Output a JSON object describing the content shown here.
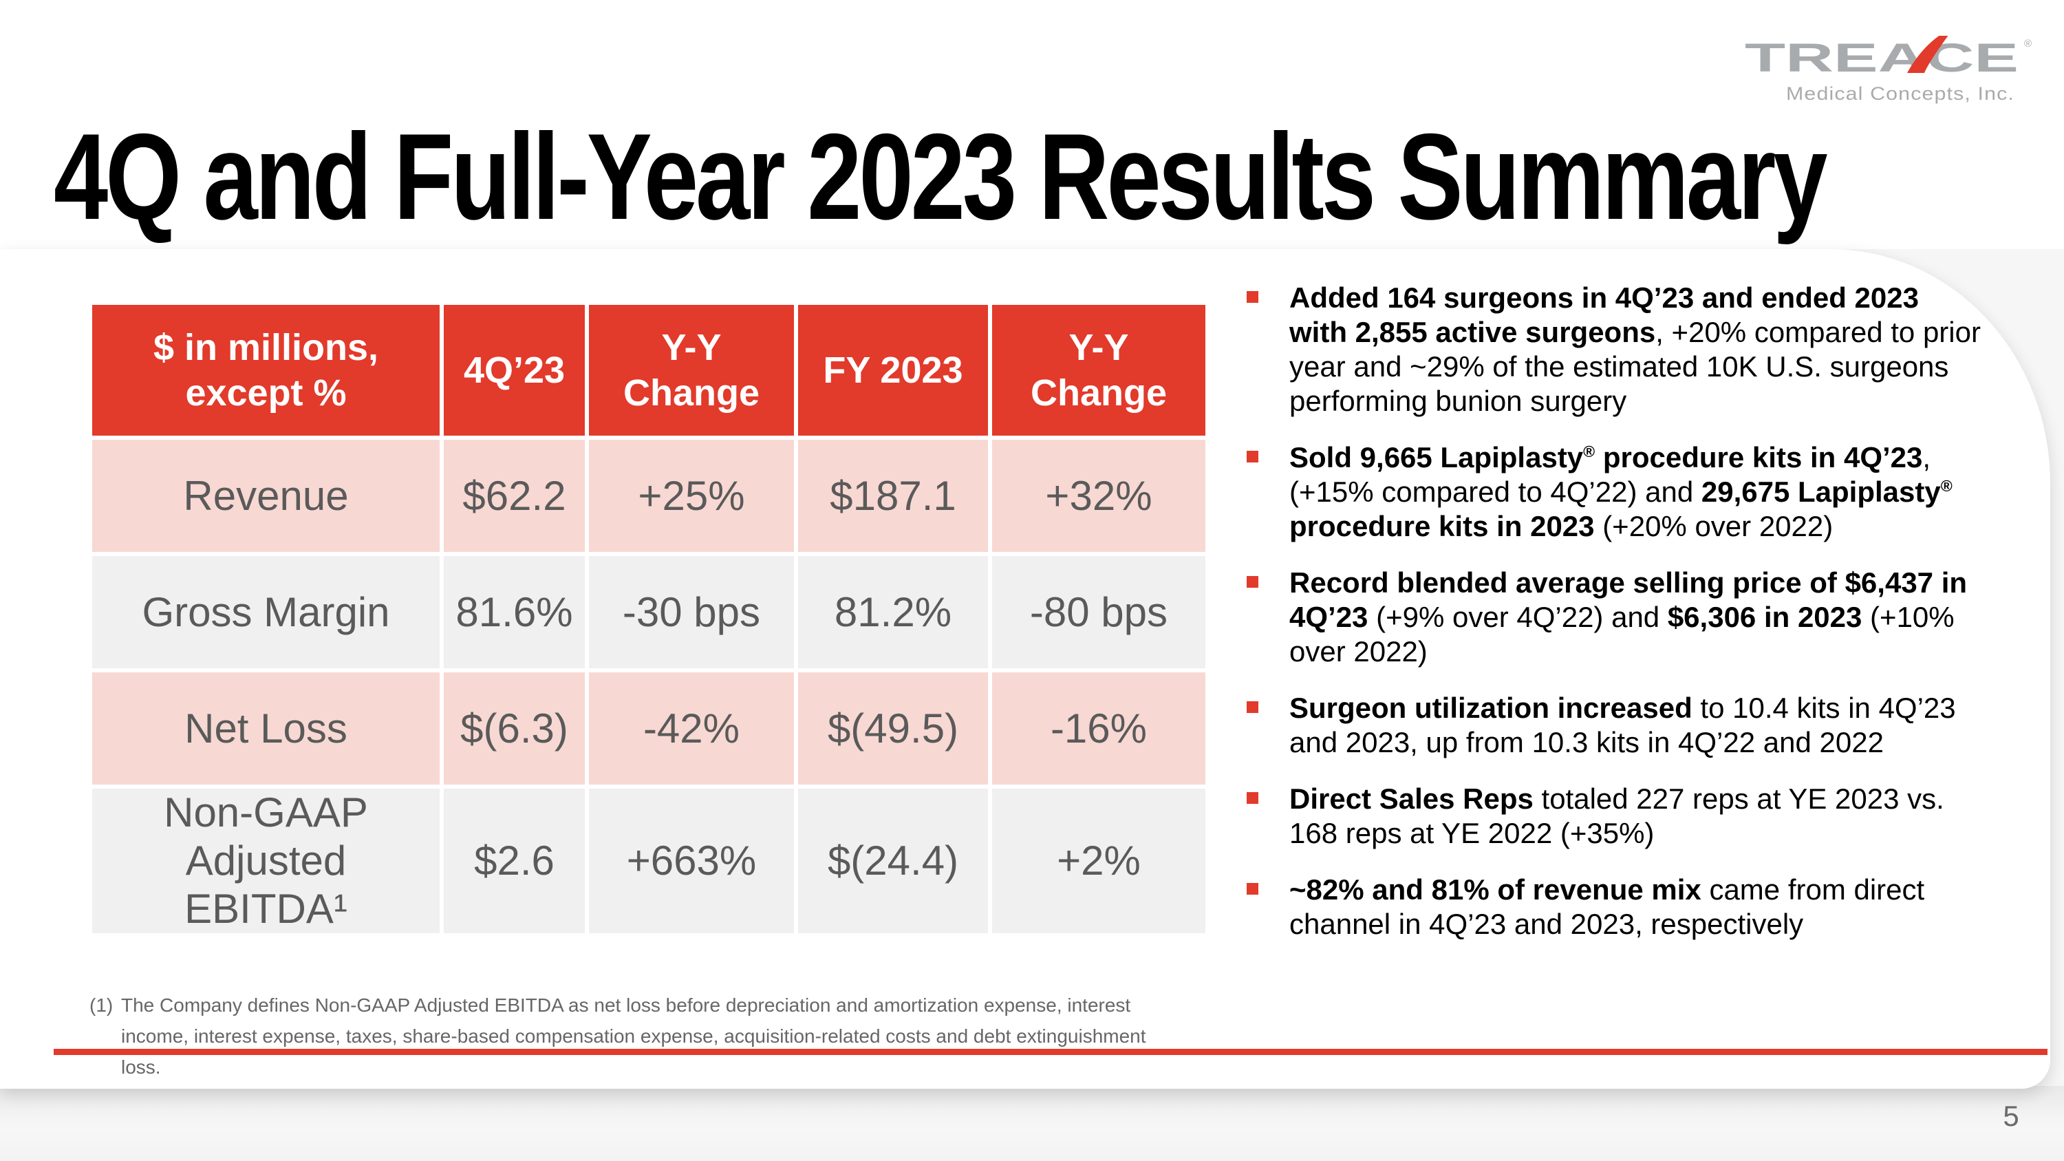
{
  "logo": {
    "brand": "TREACE",
    "registered": "®",
    "subtitle": "Medical Concepts, Inc."
  },
  "title": "4Q and Full-Year 2023 Results Summary",
  "table": {
    "headers": [
      [
        "$ in millions,",
        "except %"
      ],
      [
        "4Q’23"
      ],
      [
        "Y-Y",
        "Change"
      ],
      [
        "FY 2023"
      ],
      [
        "Y-Y",
        "Change"
      ]
    ],
    "rows": [
      {
        "label": "Revenue",
        "values": [
          "$62.2",
          "+25%",
          "$187.1",
          "+32%"
        ]
      },
      {
        "label": "Gross Margin",
        "values": [
          "81.6%",
          "-30 bps",
          "81.2%",
          "-80 bps"
        ]
      },
      {
        "label": "Net Loss",
        "values": [
          "$(6.3)",
          "-42%",
          "$(49.5)",
          "-16%"
        ]
      },
      {
        "label": "Non-GAAP Adjusted EBITDA¹",
        "values": [
          "$2.6",
          "+663%",
          "$(24.4)",
          "+2%"
        ]
      }
    ]
  },
  "bullets": [
    {
      "segments": [
        {
          "b": true,
          "t": "Added 164 surgeons in 4Q’23 and ended 2023 with 2,855 active surgeons"
        },
        {
          "t": ", +20% compared to prior year and ~29% of the estimated 10K U.S. surgeons performing bunion surgery"
        }
      ]
    },
    {
      "segments": [
        {
          "b": true,
          "t": "Sold 9,665 Lapiplasty"
        },
        {
          "b": true,
          "sup": true,
          "t": "®"
        },
        {
          "b": true,
          "t": " procedure kits in 4Q’23"
        },
        {
          "t": ", (+15% compared to 4Q’22) and "
        },
        {
          "b": true,
          "t": "29,675 Lapiplasty"
        },
        {
          "b": true,
          "sup": true,
          "t": "®"
        },
        {
          "b": true,
          "t": " procedure kits in 2023"
        },
        {
          "t": " (+20% over 2022)"
        }
      ]
    },
    {
      "segments": [
        {
          "b": true,
          "t": "Record blended average selling price of $6,437 in 4Q’23"
        },
        {
          "t": " (+9% over 4Q’22) and "
        },
        {
          "b": true,
          "t": "$6,306 in 2023"
        },
        {
          "t": " (+10% over 2022)"
        }
      ]
    },
    {
      "segments": [
        {
          "b": true,
          "t": "Surgeon utilization increased"
        },
        {
          "t": " to 10.4 kits in 4Q’23 and 2023, up from 10.3 kits in 4Q’22 and 2022"
        }
      ]
    },
    {
      "segments": [
        {
          "b": true,
          "t": "Direct Sales Reps"
        },
        {
          "t": " totaled 227 reps at YE 2023 vs. 168 reps at YE 2022 (+35%)"
        }
      ]
    },
    {
      "segments": [
        {
          "b": true,
          "t": "~82% and 81% of revenue mix"
        },
        {
          "t": " came from direct channel in 4Q’23 and 2023, respectively"
        }
      ]
    }
  ],
  "footnote": {
    "marker": "(1)",
    "text": "The Company defines Non-GAAP Adjusted EBITDA as net loss before depreciation and amortization expense, interest income, interest expense, taxes, share-based compensation expense, acquisition-related costs and debt extinguishment loss."
  },
  "page_number": "5",
  "colors": {
    "brand_red": "#e23a2b",
    "row_pink": "#f8d8d3",
    "row_gray": "#f0f0f0",
    "cell_text": "#5a5a5a",
    "logo_gray": "#a8abad",
    "footnote_gray": "#666666"
  }
}
